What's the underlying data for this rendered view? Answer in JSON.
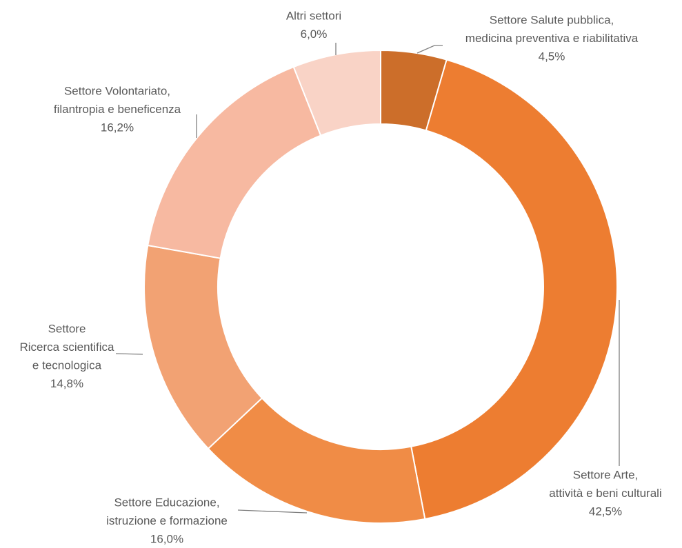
{
  "chart_data": {
    "type": "donut",
    "categories": [
      [
        "Settore Salute pubblica,",
        "medicina preventiva e riabilitativa"
      ],
      [
        "Settore Arte,",
        "attività e beni culturali"
      ],
      [
        "Settore Educazione,",
        "istruzione e formazione"
      ],
      [
        "Settore",
        "Ricerca scientifica",
        "e tecnologica"
      ],
      [
        "Settore Volontariato,",
        "filantropia e beneficenza"
      ],
      [
        "Altri settori"
      ]
    ],
    "values": [
      4.5,
      42.5,
      16.0,
      14.8,
      16.2,
      6.0
    ],
    "value_labels": [
      "4,5%",
      "42,5%",
      "16,0%",
      "14,8%",
      "16,2%",
      "6,0%"
    ],
    "colors": [
      "#cc6e2a",
      "#ed7d31",
      "#f08c46",
      "#f2a273",
      "#f7b9a1",
      "#f9d3c6"
    ]
  }
}
